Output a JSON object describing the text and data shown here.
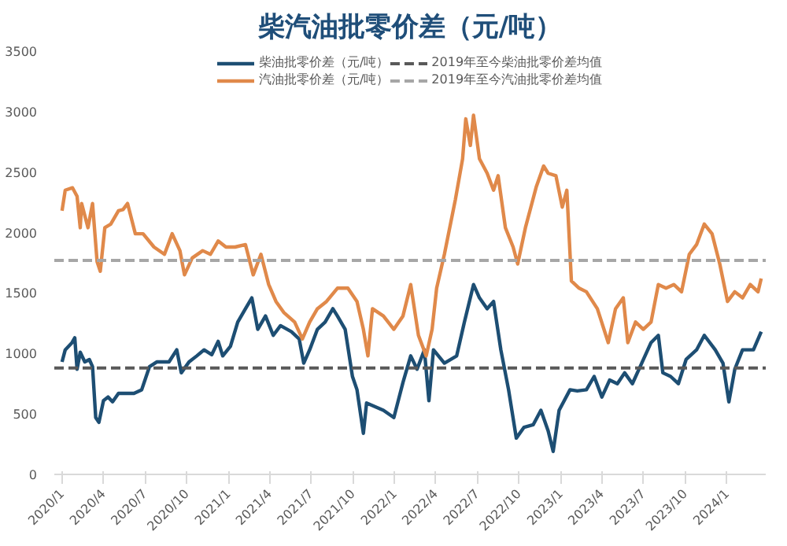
{
  "chart_data": {
    "type": "line",
    "title": "柴汽油批零价差（元/吨）",
    "xlim": [
      "2019-12-15",
      "2024-03-26"
    ],
    "xticks": [
      {
        "value": "2020-01-01",
        "label": "2020/1"
      },
      {
        "value": "2020-04-01",
        "label": "2020/4"
      },
      {
        "value": "2020-07-01",
        "label": "2020/7"
      },
      {
        "value": "2020-10-01",
        "label": "2020/10"
      },
      {
        "value": "2021-01-01",
        "label": "2021/1"
      },
      {
        "value": "2021-04-01",
        "label": "2021/4"
      },
      {
        "value": "2021-07-01",
        "label": "2021/7"
      },
      {
        "value": "2021-10-01",
        "label": "2021/10"
      },
      {
        "value": "2022-01-01",
        "label": "2022/1"
      },
      {
        "value": "2022-04-01",
        "label": "2022/4"
      },
      {
        "value": "2022-07-01",
        "label": "2022/7"
      },
      {
        "value": "2022-10-01",
        "label": "2022/10"
      },
      {
        "value": "2023-01-01",
        "label": "2023/1"
      },
      {
        "value": "2023-04-01",
        "label": "2023/4"
      },
      {
        "value": "2023-07-01",
        "label": "2023/7"
      },
      {
        "value": "2023-10-01",
        "label": "2023/10"
      },
      {
        "value": "2024-01-01",
        "label": "2024/1"
      }
    ],
    "ylim": [
      0,
      3500
    ],
    "yticks": [
      0,
      500,
      1000,
      1500,
      2000,
      2500,
      3000,
      3500
    ],
    "grid": false,
    "legend": "top",
    "line_style": "solid",
    "marker": "none",
    "series": [
      {
        "name": "柴油批零价差（元/吨）",
        "color": "#1d4e73",
        "x": [
          "2020-01-01",
          "2020-01-08",
          "2020-01-23",
          "2020-01-29",
          "2020-02-03",
          "2020-02-10",
          "2020-02-20",
          "2020-03-01",
          "2020-03-08",
          "2020-03-15",
          "2020-03-22",
          "2020-04-01",
          "2020-04-11",
          "2020-04-21",
          "2020-05-04",
          "2020-06-07",
          "2020-06-24",
          "2020-07-11",
          "2020-07-27",
          "2020-08-23",
          "2020-09-09",
          "2020-09-19",
          "2020-10-06",
          "2020-10-23",
          "2020-11-08",
          "2020-11-25",
          "2020-12-09",
          "2020-12-19",
          "2021-01-05",
          "2021-01-21",
          "2021-02-07",
          "2021-02-21",
          "2021-03-06",
          "2021-03-23",
          "2021-04-09",
          "2021-04-25",
          "2021-05-19",
          "2021-06-05",
          "2021-06-15",
          "2021-06-28",
          "2021-07-15",
          "2021-08-01",
          "2021-08-18",
          "2021-08-28",
          "2021-09-14",
          "2021-09-30",
          "2021-10-10",
          "2021-10-24",
          "2021-10-31",
          "2021-12-07",
          "2021-12-30",
          "2022-01-19",
          "2022-02-05",
          "2022-02-19",
          "2022-03-07",
          "2022-03-17",
          "2022-03-27",
          "2022-04-20",
          "2022-05-17",
          "2022-06-03",
          "2022-06-23",
          "2022-07-06",
          "2022-07-23",
          "2022-08-06",
          "2022-08-22",
          "2022-09-08",
          "2022-09-25",
          "2022-10-12",
          "2022-11-01",
          "2022-11-18",
          "2022-12-04",
          "2022-12-15",
          "2022-12-28",
          "2023-01-21",
          "2023-02-06",
          "2023-02-26",
          "2023-03-15",
          "2023-04-01",
          "2023-04-18",
          "2023-05-05",
          "2023-05-21",
          "2023-06-07",
          "2023-06-24",
          "2023-07-18",
          "2023-08-03",
          "2023-08-13",
          "2023-08-30",
          "2023-09-16",
          "2023-10-03",
          "2023-10-26",
          "2023-11-12",
          "2023-12-06",
          "2023-12-23",
          "2024-01-05",
          "2024-01-18",
          "2024-02-04",
          "2024-02-28",
          "2024-03-16"
        ],
        "values": [
          930,
          1030,
          1090,
          1130,
          870,
          1010,
          930,
          950,
          890,
          470,
          430,
          610,
          640,
          600,
          670,
          670,
          700,
          890,
          930,
          930,
          1030,
          840,
          930,
          980,
          1030,
          990,
          1100,
          980,
          1060,
          1260,
          1370,
          1460,
          1200,
          1310,
          1150,
          1230,
          1180,
          1120,
          920,
          1030,
          1200,
          1260,
          1370,
          1310,
          1200,
          810,
          700,
          340,
          590,
          530,
          470,
          760,
          980,
          870,
          1030,
          610,
          1030,
          920,
          980,
          1260,
          1570,
          1460,
          1370,
          1430,
          1030,
          700,
          300,
          390,
          410,
          530,
          360,
          190,
          530,
          700,
          690,
          700,
          810,
          640,
          780,
          750,
          840,
          750,
          890,
          1090,
          1150,
          840,
          810,
          750,
          950,
          1030,
          1150,
          1030,
          920,
          600,
          870,
          1030,
          1030,
          1180
        ]
      },
      {
        "name": "汽油批零价差（元/吨）",
        "color": "#e0894a",
        "x": [
          "2020-01-01",
          "2020-01-08",
          "2020-01-24",
          "2020-02-03",
          "2020-02-10",
          "2020-02-13",
          "2020-02-27",
          "2020-03-08",
          "2020-03-18",
          "2020-03-25",
          "2020-04-04",
          "2020-04-17",
          "2020-05-04",
          "2020-05-14",
          "2020-05-24",
          "2020-06-10",
          "2020-06-27",
          "2020-07-21",
          "2020-08-13",
          "2020-08-30",
          "2020-09-16",
          "2020-09-26",
          "2020-10-13",
          "2020-11-05",
          "2020-11-22",
          "2020-12-09",
          "2020-12-26",
          "2021-01-15",
          "2021-02-07",
          "2021-02-24",
          "2021-03-13",
          "2021-03-30",
          "2021-04-15",
          "2021-05-02",
          "2021-05-26",
          "2021-06-12",
          "2021-06-28",
          "2021-07-15",
          "2021-08-04",
          "2021-08-28",
          "2021-09-20",
          "2021-10-10",
          "2021-10-24",
          "2021-11-03",
          "2021-11-13",
          "2021-12-07",
          "2021-12-30",
          "2022-01-19",
          "2022-02-05",
          "2022-02-22",
          "2022-03-11",
          "2022-03-24",
          "2022-04-03",
          "2022-04-20",
          "2022-05-14",
          "2022-05-30",
          "2022-06-06",
          "2022-06-16",
          "2022-06-23",
          "2022-07-06",
          "2022-07-23",
          "2022-08-06",
          "2022-08-16",
          "2022-09-01",
          "2022-09-18",
          "2022-09-28",
          "2022-10-15",
          "2022-11-08",
          "2022-11-24",
          "2022-12-04",
          "2022-12-21",
          "2023-01-04",
          "2023-01-14",
          "2023-01-24",
          "2023-02-10",
          "2023-02-26",
          "2023-03-22",
          "2023-04-15",
          "2023-05-01",
          "2023-05-18",
          "2023-05-28",
          "2023-06-14",
          "2023-07-01",
          "2023-07-18",
          "2023-08-03",
          "2023-08-20",
          "2023-09-06",
          "2023-09-23",
          "2023-10-10",
          "2023-10-26",
          "2023-11-12",
          "2023-11-29",
          "2023-12-16",
          "2024-01-02",
          "2024-01-18",
          "2024-02-04",
          "2024-02-21",
          "2024-03-09",
          "2024-03-16"
        ],
        "values": [
          2180,
          2350,
          2370,
          2300,
          2040,
          2240,
          2040,
          2240,
          1760,
          1680,
          2040,
          2070,
          2180,
          2190,
          2240,
          1990,
          1990,
          1880,
          1820,
          1990,
          1850,
          1650,
          1790,
          1850,
          1820,
          1930,
          1880,
          1880,
          1900,
          1650,
          1820,
          1570,
          1430,
          1340,
          1260,
          1120,
          1260,
          1370,
          1430,
          1540,
          1540,
          1430,
          1200,
          980,
          1370,
          1310,
          1200,
          1310,
          1570,
          1150,
          980,
          1200,
          1540,
          1820,
          2270,
          2610,
          2940,
          2720,
          2970,
          2610,
          2490,
          2350,
          2470,
          2040,
          1880,
          1740,
          2040,
          2380,
          2550,
          2490,
          2470,
          2210,
          2350,
          1600,
          1540,
          1510,
          1370,
          1090,
          1370,
          1460,
          1090,
          1260,
          1200,
          1260,
          1570,
          1540,
          1570,
          1510,
          1820,
          1900,
          2070,
          1990,
          1740,
          1430,
          1510,
          1460,
          1570,
          1510,
          1620
        ]
      }
    ],
    "ref_lines": [
      {
        "axis": "y",
        "value": 880,
        "label": "2019年至今柴油批零价差均值",
        "color": "#595959",
        "line_style": "dashed"
      },
      {
        "axis": "y",
        "value": 1770,
        "label": "2019年至今汽油批零价差均值",
        "color": "#a6a6a6",
        "line_style": "dashed"
      }
    ]
  }
}
